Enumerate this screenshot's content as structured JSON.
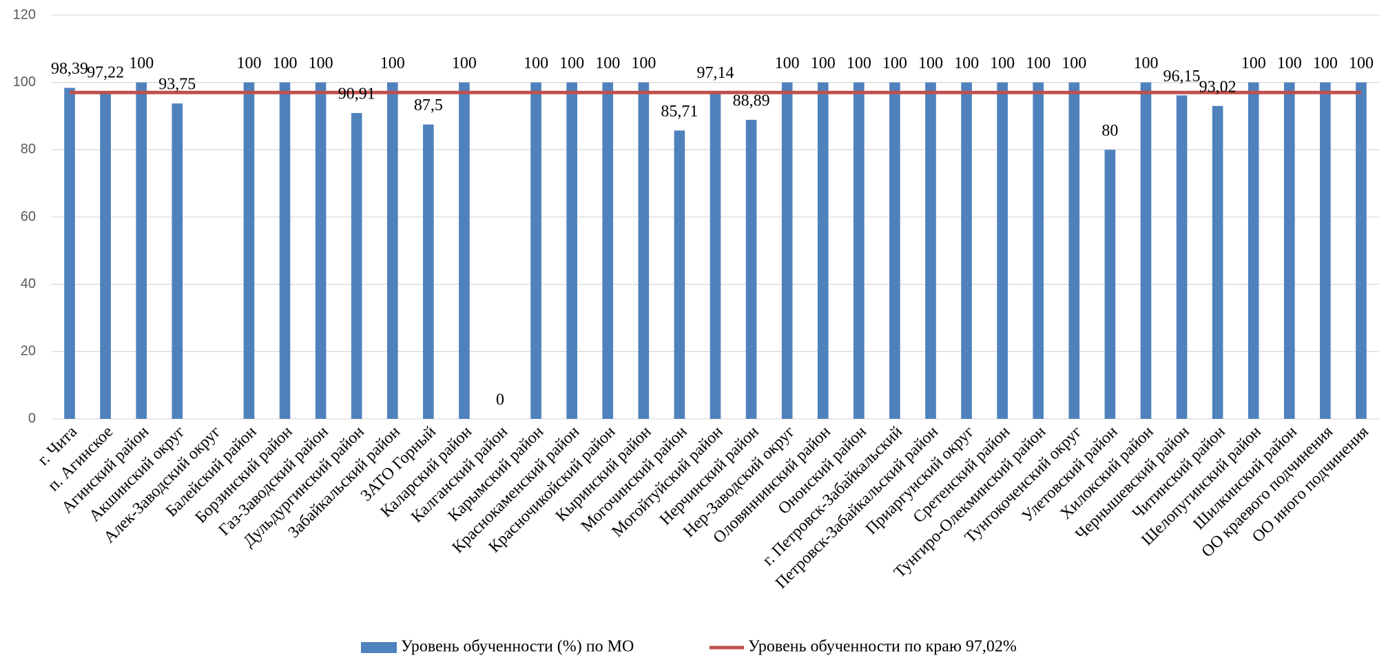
{
  "chart_data": {
    "type": "bar",
    "categories": [
      "г. Чита",
      "п. Агинское",
      "Агинский район",
      "Акшинский округ",
      "Алек-Заводский округ",
      "Балейский район",
      "Борзинский район",
      "Газ-Заводский район",
      "Дульдургинский район",
      "Забайкальский район",
      "ЗАТО Горный",
      "Каларский район",
      "Калганский район",
      "Карымский район",
      "Краснокаменский район",
      "Красночикойский район",
      "Кыринский район",
      "Могочинский район",
      "Могойтуйский район",
      "Нерчинский район",
      "Нер-Заводский округ",
      "Оловяннинский район",
      "Ононский район",
      "г. Петровск-Забайкальский",
      "Петровск-Забайкальский район",
      "Приаргунский округ",
      "Сретенский район",
      "Тунгиро-Олекминский район",
      "Тунгокоченский округ",
      "Улетовский район",
      "Хилокский район",
      "Чернышевский район",
      "Читинский район",
      "Шелопугинский район",
      "Шилкинский район",
      "ОО краевого подчинения",
      "ОО иного подчинения"
    ],
    "series": [
      {
        "name": "Уровень обученности (%) по МО",
        "color": "#4f81bd",
        "values": [
          98.39,
          97.22,
          100,
          93.75,
          null,
          100,
          100,
          100,
          90.91,
          100,
          87.5,
          100,
          0,
          100,
          100,
          100,
          100,
          85.71,
          97.14,
          88.89,
          100,
          100,
          100,
          100,
          100,
          100,
          100,
          100,
          100,
          80,
          100,
          96.15,
          93.02,
          100,
          100,
          100,
          100
        ],
        "value_labels": [
          "98,39",
          "97,22",
          "100",
          "93,75",
          null,
          "100",
          "100",
          "100",
          "90,91",
          "100",
          "87,5",
          "100",
          "0",
          "100",
          "100",
          "100",
          "100",
          "85,71",
          "97,14",
          "88,89",
          "100",
          "100",
          "100",
          "100",
          "100",
          "100",
          "100",
          "100",
          "100",
          "80",
          "100",
          "96,15",
          "93,02",
          "100",
          "100",
          "100",
          "100"
        ]
      },
      {
        "name": "Уровень обученности по краю 97,02%",
        "color": "#c0504d",
        "type": "line",
        "values": [
          97.02,
          97.02,
          97.02,
          97.02,
          97.02,
          97.02,
          97.02,
          97.02,
          97.02,
          97.02,
          97.02,
          97.02,
          97.02,
          97.02,
          97.02,
          97.02,
          97.02,
          97.02,
          97.02,
          97.02,
          97.02,
          97.02,
          97.02,
          97.02,
          97.02,
          97.02,
          97.02,
          97.02,
          97.02,
          97.02,
          97.02,
          97.02,
          97.02,
          97.02,
          97.02,
          97.02,
          97.02
        ]
      }
    ],
    "ylim": [
      0,
      120
    ],
    "yticks": [
      0,
      20,
      40,
      60,
      80,
      100,
      120
    ],
    "grid": true,
    "legend": "bottom"
  }
}
